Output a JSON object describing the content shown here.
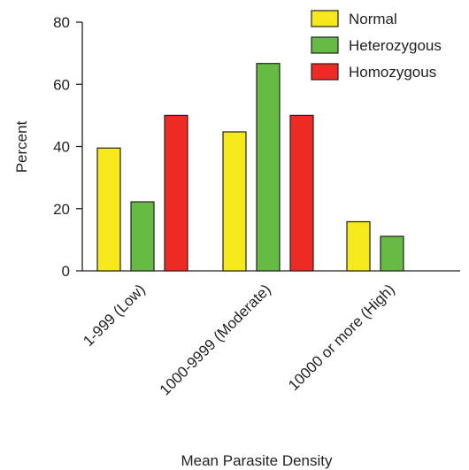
{
  "chart_data": {
    "type": "bar",
    "categories": [
      "1-999 (Low)",
      "1000-9999 (Moderate)",
      "10000 or more (High)"
    ],
    "series": [
      {
        "name": "Normal",
        "color": "#f5e91b",
        "values": [
          39.5,
          44.7,
          15.8
        ]
      },
      {
        "name": "Heterozygous",
        "color": "#66bb44",
        "values": [
          22.2,
          66.7,
          11.1
        ]
      },
      {
        "name": "Homozygous",
        "color": "#ee2a24",
        "values": [
          50,
          50,
          0
        ]
      }
    ],
    "xlabel": "Mean Parasite Density",
    "ylabel": "Percent",
    "ylim": [
      0,
      80
    ],
    "yticks": [
      0,
      20,
      40,
      60,
      80
    ],
    "grid": false,
    "legend_position": "top-right"
  }
}
